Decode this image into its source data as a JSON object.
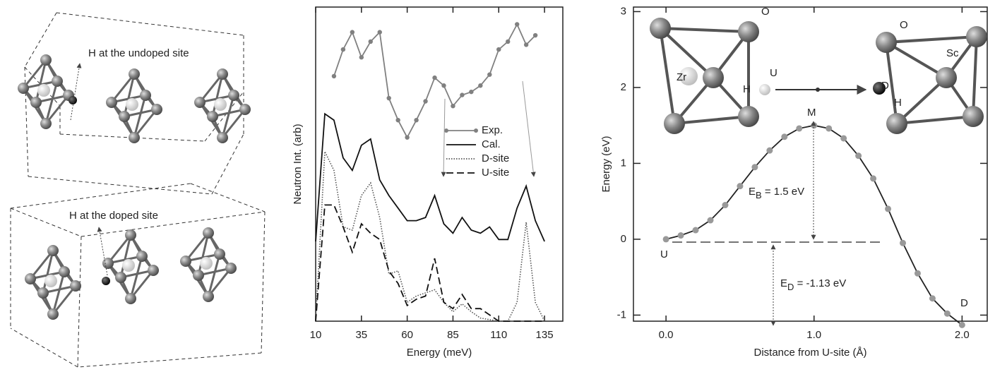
{
  "diagram": {
    "labels": [
      "H at the undoped site",
      "H at the doped site"
    ]
  },
  "chart_data": [
    {
      "type": "line",
      "x_label": "Energy (meV)",
      "y_label": "Neutron Int. (arb)",
      "xlim": [
        10,
        145
      ],
      "xticks": [
        10,
        35,
        60,
        85,
        110,
        135
      ],
      "ylim": [
        0,
        10
      ],
      "legend": "right",
      "x": [
        10,
        15,
        20,
        25,
        30,
        35,
        40,
        45,
        50,
        55,
        60,
        65,
        70,
        75,
        80,
        85,
        90,
        95,
        100,
        105,
        110,
        115,
        120,
        125,
        130,
        135
      ],
      "series": [
        {
          "name": "Exp.",
          "color": "#808080",
          "style": "markers",
          "values": [
            null,
            null,
            7.8,
            8.65,
            9.2,
            8.4,
            8.9,
            9.2,
            7.1,
            6.4,
            5.85,
            6.4,
            7.0,
            7.75,
            7.5,
            6.85,
            7.2,
            7.3,
            7.5,
            7.85,
            8.65,
            8.9,
            9.45,
            8.8,
            9.1,
            null
          ]
        },
        {
          "name": "Cal.",
          "color": "#111111",
          "style": "solid",
          "values": [
            2.54,
            6.6,
            6.4,
            5.2,
            4.8,
            5.6,
            5.8,
            4.5,
            4.0,
            3.6,
            3.2,
            3.2,
            3.3,
            4.0,
            3.1,
            2.8,
            3.3,
            2.9,
            2.8,
            3.0,
            2.6,
            2.6,
            3.6,
            4.3,
            3.2,
            2.54
          ]
        },
        {
          "name": "D-site",
          "color": "#555555",
          "style": "dotted",
          "values": [
            0,
            5.4,
            4.8,
            3.0,
            2.9,
            4.0,
            4.4,
            3.3,
            1.5,
            1.6,
            0.6,
            0.8,
            0.9,
            1.0,
            0.6,
            0.3,
            0.55,
            0.3,
            0.1,
            0.05,
            0,
            0,
            0.6,
            3.15,
            0.6,
            0
          ]
        },
        {
          "name": "U-site",
          "color": "#111111",
          "style": "dashed",
          "values": [
            0,
            3.7,
            3.7,
            3.0,
            2.2,
            3.1,
            2.8,
            2.6,
            1.6,
            1.2,
            0.5,
            0.7,
            0.8,
            2.0,
            0.6,
            0.4,
            0.85,
            0.4,
            0.4,
            0.2,
            0,
            0,
            0,
            0,
            0,
            0
          ]
        }
      ]
    },
    {
      "type": "line",
      "x_label": "Distance from U-site (Å)",
      "y_label": "Energy (eV)",
      "xlim": [
        -0.22,
        2.17
      ],
      "xticks": [
        {
          "value": 0,
          "label": "0.0"
        },
        {
          "value": 1,
          "label": "1.0"
        },
        {
          "value": 2,
          "label": "2.0"
        }
      ],
      "ylim": [
        -1.08,
        3.06
      ],
      "yticks": [
        -1,
        0,
        1,
        2,
        3
      ],
      "color": "#222222",
      "marker_color": "#999999",
      "x": [
        0,
        0.1,
        0.2,
        0.3,
        0.4,
        0.5,
        0.6,
        0.7,
        0.8,
        0.9,
        1.0,
        1.1,
        1.2,
        1.3,
        1.4,
        1.5,
        1.6,
        1.7,
        1.8,
        1.9,
        2.0
      ],
      "values": [
        0,
        0.05,
        0.12,
        0.25,
        0.45,
        0.7,
        0.95,
        1.17,
        1.35,
        1.46,
        1.5,
        1.46,
        1.33,
        1.1,
        0.8,
        0.4,
        -0.05,
        -0.45,
        -0.78,
        -0.98,
        -1.13
      ],
      "annotations": [
        "U",
        "M",
        "D"
      ],
      "eb_label": {
        "main": "E",
        "sub": "B",
        "rest": " = 1.5 eV"
      },
      "ed_label": {
        "main": "E",
        "sub": "D",
        "rest": " = -1.13 eV"
      },
      "inset_labels": [
        "O",
        "Zr",
        "H",
        "U",
        "D",
        "H",
        "O",
        "Sc"
      ]
    }
  ]
}
